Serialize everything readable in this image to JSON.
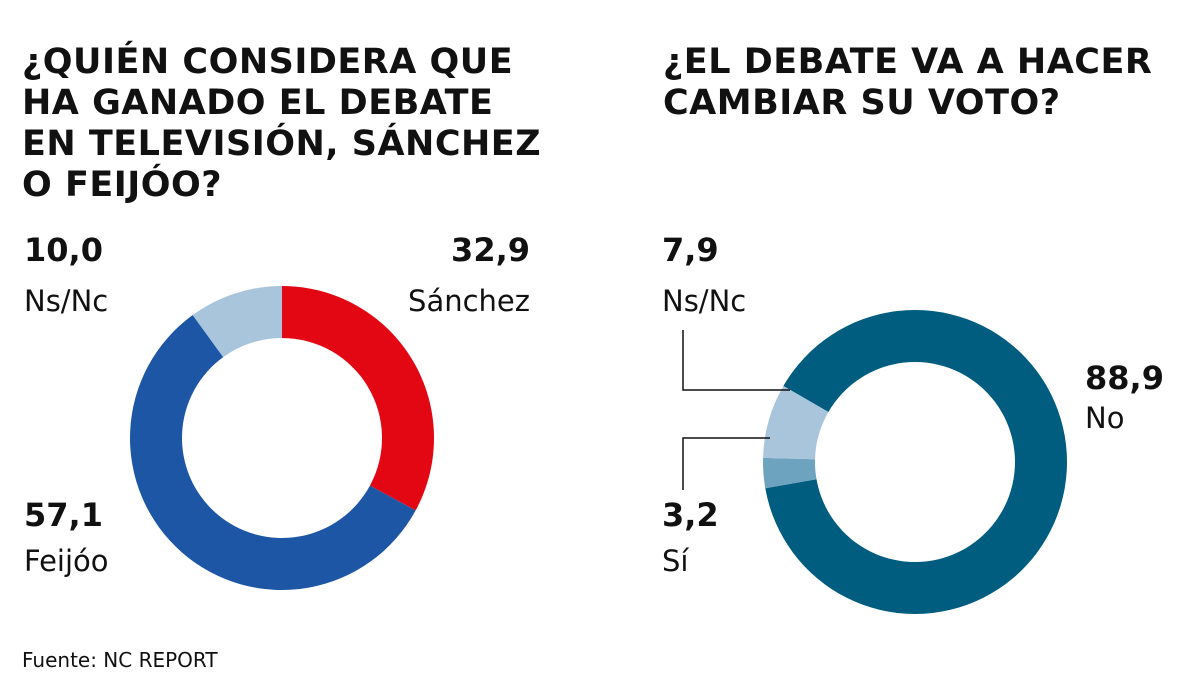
{
  "chart_data": [
    {
      "type": "pie",
      "variant": "donut",
      "title": "¿QUIÉN CONSIDERA QUE\nHA GANADO EL DEBATE\nEN TELEVISIÓN, SÁNCHEZ\nO FEIJÓO?",
      "slices": [
        {
          "label": "Sánchez",
          "value": 32.9,
          "display": "32,9",
          "color": "#e30613"
        },
        {
          "label": "Feijóo",
          "value": 57.1,
          "display": "57,1",
          "color": "#1d56a4"
        },
        {
          "label": "Ns/Nc",
          "value": 10.0,
          "display": "10,0",
          "color": "#a8c5dc"
        }
      ]
    },
    {
      "type": "pie",
      "variant": "donut",
      "title": "¿EL DEBATE VA A HACER\nCAMBIAR SU VOTO?",
      "slices": [
        {
          "label": "No",
          "value": 88.9,
          "display": "88,9",
          "color": "#005d7f"
        },
        {
          "label": "Sí",
          "value": 3.2,
          "display": "3,2",
          "color": "#6ea3c0"
        },
        {
          "label": "Ns/Nc",
          "value": 7.9,
          "display": "7,9",
          "color": "#a8c5dc"
        }
      ]
    }
  ],
  "source": "Fuente: NC REPORT"
}
